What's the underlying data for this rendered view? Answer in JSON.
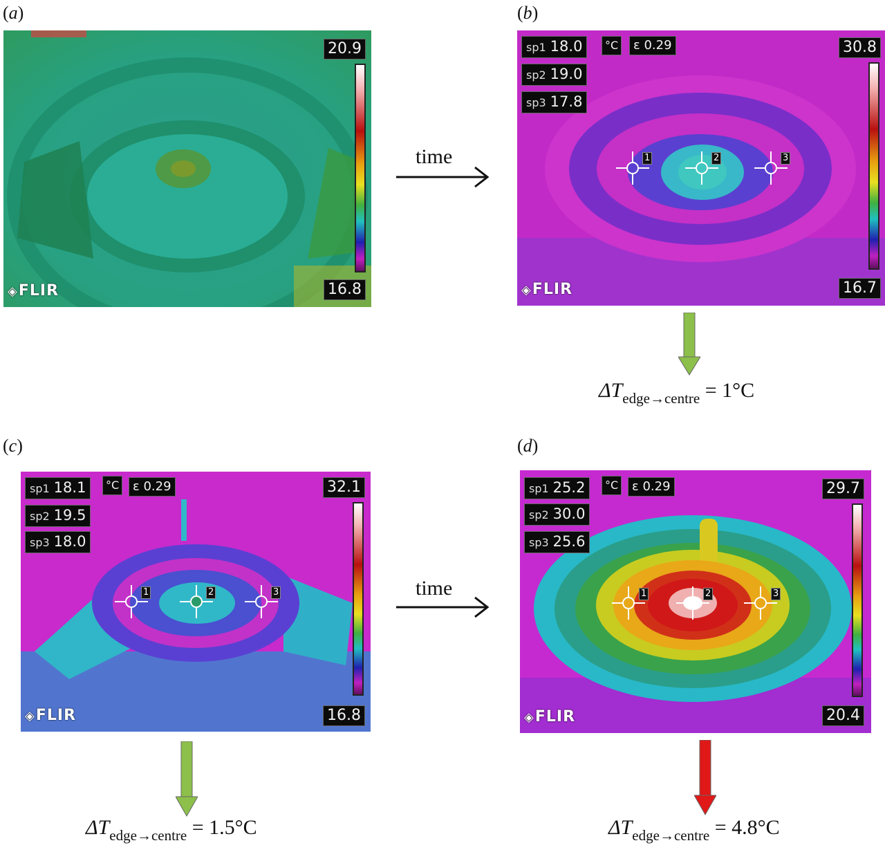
{
  "panels": [
    {
      "label_letter": "a",
      "scale_max": "20.9",
      "scale_min": "16.8",
      "brand": "FLIR",
      "readouts": [],
      "unit": "",
      "emissivity": "",
      "markers": []
    },
    {
      "label_letter": "b",
      "scale_max": "30.8",
      "scale_min": "16.7",
      "brand": "FLIR",
      "readouts": [
        {
          "key": "sp1",
          "value": "18.0"
        },
        {
          "key": "sp2",
          "value": "19.0"
        },
        {
          "key": "sp3",
          "value": "17.8"
        }
      ],
      "unit": "°C",
      "emissivity": "ε 0.29",
      "markers": [
        "1",
        "2",
        "3"
      ]
    },
    {
      "label_letter": "c",
      "scale_max": "32.1",
      "scale_min": "16.8",
      "brand": "FLIR",
      "readouts": [
        {
          "key": "sp1",
          "value": "18.1"
        },
        {
          "key": "sp2",
          "value": "19.5"
        },
        {
          "key": "sp3",
          "value": "18.0"
        }
      ],
      "unit": "°C",
      "emissivity": "ε 0.29",
      "markers": [
        "1",
        "2",
        "3"
      ]
    },
    {
      "label_letter": "d",
      "scale_max": "29.7",
      "scale_min": "20.4",
      "brand": "FLIR",
      "readouts": [
        {
          "key": "sp1",
          "value": "25.2"
        },
        {
          "key": "sp2",
          "value": "30.0"
        },
        {
          "key": "sp3",
          "value": "25.6"
        }
      ],
      "unit": "°C",
      "emissivity": "ε 0.29",
      "markers": [
        "1",
        "2",
        "3"
      ]
    }
  ],
  "arrows": {
    "time_label_top": "time",
    "time_label_bottom": "time"
  },
  "results": {
    "b": {
      "delta_prefix": "ΔT",
      "subscript": "edge→centre",
      "value": "= 1°C",
      "arrow_color": "#8cc04a"
    },
    "c": {
      "delta_prefix": "ΔT",
      "subscript": "edge→centre",
      "value": "= 1.5°C",
      "arrow_color": "#8cc04a"
    },
    "d": {
      "delta_prefix": "ΔT",
      "subscript": "edge→centre",
      "value": "= 4.8°C",
      "arrow_color": "#e01818"
    }
  },
  "colors": {
    "panel_a_base": "#2aa88a",
    "panel_b_base": "#c828c8",
    "panel_c_base": "#cc2ad0",
    "panel_d_base": "#c52ad0",
    "hot_core": "#d01818"
  }
}
